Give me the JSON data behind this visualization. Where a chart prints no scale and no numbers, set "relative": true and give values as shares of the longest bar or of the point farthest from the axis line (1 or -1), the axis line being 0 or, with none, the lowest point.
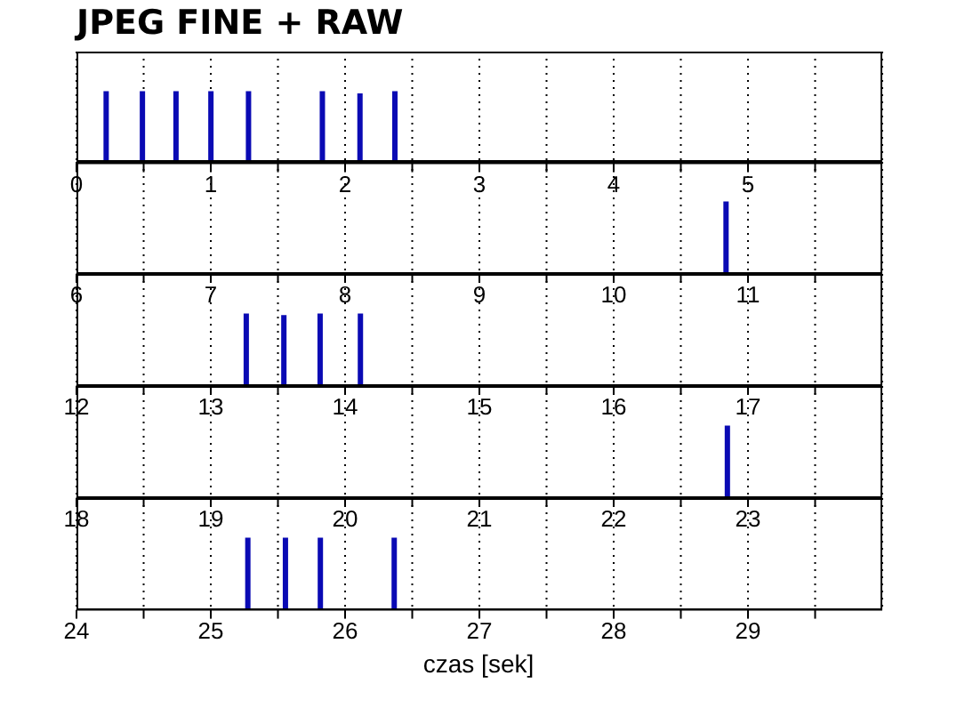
{
  "chart_data": [
    {
      "type": "bar",
      "title": "JPEG FINE + RAW",
      "relative": true,
      "color": "#0a0ab4",
      "grid": "x",
      "tick_labels": "x",
      "xlim": [
        0,
        6
      ],
      "xticks": [
        0,
        {
          "value": 0.5,
          "label": null
        },
        1,
        {
          "value": 1.5,
          "label": null
        },
        2,
        {
          "value": 2.5,
          "label": null
        },
        3,
        {
          "value": 3.5,
          "label": null
        },
        4,
        {
          "value": 4.5,
          "label": null
        },
        5,
        {
          "value": 5.5,
          "label": null
        }
      ],
      "x": [
        0.22,
        0.49,
        0.74,
        1.0,
        1.28,
        1.83,
        2.11,
        2.37
      ],
      "values": [
        1,
        1,
        1,
        1,
        1,
        1,
        0.97,
        1
      ]
    },
    {
      "type": "bar",
      "relative": true,
      "color": "#0a0ab4",
      "grid": "x",
      "tick_labels": "x",
      "xlim": [
        6,
        12
      ],
      "xticks": [
        6,
        {
          "value": 6.5,
          "label": null
        },
        7,
        {
          "value": 7.5,
          "label": null
        },
        8,
        {
          "value": 8.5,
          "label": null
        },
        9,
        {
          "value": 9.5,
          "label": null
        },
        10,
        {
          "value": 10.5,
          "label": null
        },
        11,
        {
          "value": 11.5,
          "label": null
        }
      ],
      "x": [
        10.83
      ],
      "values": [
        1
      ]
    },
    {
      "type": "bar",
      "relative": true,
      "color": "#0a0ab4",
      "grid": "x",
      "tick_labels": "x",
      "xlim": [
        12,
        18
      ],
      "xticks": [
        12,
        {
          "value": 12.5,
          "label": null
        },
        13,
        {
          "value": 13.5,
          "label": null
        },
        14,
        {
          "value": 14.5,
          "label": null
        },
        15,
        {
          "value": 15.5,
          "label": null
        },
        16,
        {
          "value": 16.5,
          "label": null
        },
        17,
        {
          "value": 17.5,
          "label": null
        }
      ],
      "x": [
        13.26,
        13.54,
        13.81,
        14.11
      ],
      "values": [
        1,
        0.98,
        1,
        1
      ]
    },
    {
      "type": "bar",
      "relative": true,
      "color": "#0a0ab4",
      "grid": "x",
      "tick_labels": "x",
      "xlim": [
        18,
        24
      ],
      "xticks": [
        18,
        {
          "value": 18.5,
          "label": null
        },
        19,
        {
          "value": 19.5,
          "label": null
        },
        20,
        {
          "value": 20.5,
          "label": null
        },
        21,
        {
          "value": 21.5,
          "label": null
        },
        22,
        {
          "value": 22.5,
          "label": null
        },
        23,
        {
          "value": 23.5,
          "label": null
        }
      ],
      "x": [
        22.84
      ],
      "values": [
        1
      ]
    },
    {
      "type": "bar",
      "relative": true,
      "color": "#0a0ab4",
      "grid": "x",
      "tick_labels": "x",
      "xlabel": "czas [sek]",
      "xlim": [
        24,
        30
      ],
      "xticks": [
        24,
        {
          "value": 24.5,
          "label": null
        },
        25,
        {
          "value": 25.5,
          "label": null
        },
        26,
        {
          "value": 26.5,
          "label": null
        },
        27,
        {
          "value": 27.5,
          "label": null
        },
        28,
        {
          "value": 28.5,
          "label": null
        },
        29,
        {
          "value": 29.5,
          "label": null
        }
      ],
      "x": [
        25.28,
        25.56,
        25.82,
        26.37
      ],
      "values": [
        1,
        1,
        1,
        1
      ]
    }
  ]
}
